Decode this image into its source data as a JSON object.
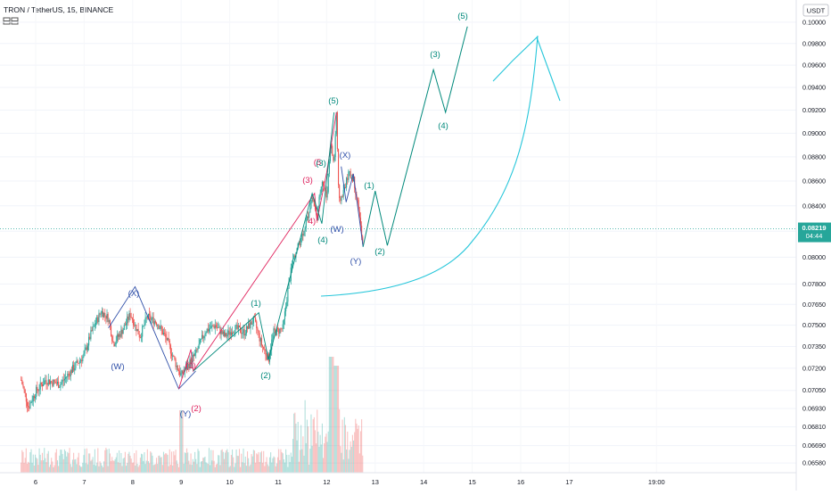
{
  "header": {
    "title": "TRON / TetherUS, 15, BINANCE",
    "indicator_icons": [
      "ruler-icon",
      "eye-icon"
    ]
  },
  "price_axis": {
    "currency": "USDT",
    "ticks": [
      "0.06580",
      "0.06690",
      "0.06810",
      "0.06930",
      "0.07050",
      "0.07200",
      "0.07350",
      "0.07500",
      "0.07650",
      "0.07800",
      "0.08000",
      "0.08200",
      "0.08400",
      "0.08600",
      "0.08800",
      "0.09000",
      "0.09200",
      "0.09400",
      "0.09600",
      "0.09800",
      "0.10000"
    ],
    "current_price": "0.08219",
    "countdown": "04:44"
  },
  "time_axis": {
    "labels": [
      "6",
      "7",
      "8",
      "9",
      "10",
      "11",
      "12",
      "13",
      "14",
      "15",
      "16",
      "17",
      "19:00"
    ]
  },
  "colors": {
    "up": "#26a69a",
    "down": "#ef5350",
    "teal": "#00897b",
    "blue": "#2f4fa8",
    "red": "#e0245e",
    "projection": "#26c6da",
    "price_line": "#26a69a"
  },
  "labels": {
    "blue_x1": "(X)",
    "blue_w1": "(W)",
    "blue_y1": "(Y)",
    "blue_x2": "(X)",
    "blue_w2": "(W)",
    "blue_y2": "(Y)",
    "red_1": "(1)",
    "red_2": "(2)",
    "red_3": "(3)",
    "red_4": "4)",
    "red_5": "(5",
    "green_1a": "(1)",
    "green_2a": "(2)",
    "green_3a": "(3)",
    "green_4a": "(4)",
    "green_5a": "(5)",
    "green_1b": "(1)",
    "green_2b": "(2)",
    "green_3b": "(3)",
    "green_4b": "(4)",
    "green_5b": "(5)"
  },
  "chart_data": {
    "type": "candlestick",
    "symbol": "TRON / TetherUS",
    "interval": "15",
    "exchange": "BINANCE",
    "y_range": [
      0.0652,
      0.1011
    ],
    "price_path": [
      [
        5.7,
        0.0712
      ],
      [
        5.85,
        0.0694
      ],
      [
        6.0,
        0.0704
      ],
      [
        6.2,
        0.0712
      ],
      [
        6.5,
        0.0709
      ],
      [
        6.8,
        0.0721
      ],
      [
        7.0,
        0.0729
      ],
      [
        7.15,
        0.0745
      ],
      [
        7.35,
        0.076
      ],
      [
        7.5,
        0.0755
      ],
      [
        7.6,
        0.0737
      ],
      [
        7.8,
        0.0747
      ],
      [
        7.95,
        0.0758
      ],
      [
        8.15,
        0.0742
      ],
      [
        8.3,
        0.0756
      ],
      [
        8.5,
        0.0752
      ],
      [
        8.7,
        0.074
      ],
      [
        8.9,
        0.0722
      ],
      [
        9.0,
        0.0715
      ],
      [
        9.1,
        0.072
      ],
      [
        9.3,
        0.073
      ],
      [
        9.5,
        0.0746
      ],
      [
        9.7,
        0.075
      ],
      [
        9.9,
        0.0742
      ],
      [
        10.1,
        0.0748
      ],
      [
        10.3,
        0.0745
      ],
      [
        10.5,
        0.0754
      ],
      [
        10.65,
        0.0737
      ],
      [
        10.8,
        0.0726
      ],
      [
        10.9,
        0.0745
      ],
      [
        11.0,
        0.0746
      ],
      [
        11.1,
        0.0748
      ],
      [
        11.2,
        0.0775
      ],
      [
        11.3,
        0.0798
      ],
      [
        11.45,
        0.0812
      ],
      [
        11.6,
        0.083
      ],
      [
        11.7,
        0.0847
      ],
      [
        11.8,
        0.083
      ],
      [
        11.9,
        0.0862
      ],
      [
        12.0,
        0.0846
      ],
      [
        12.08,
        0.0892
      ],
      [
        12.15,
        0.0873
      ],
      [
        12.2,
        0.0918
      ],
      [
        12.25,
        0.0842
      ],
      [
        12.35,
        0.0852
      ],
      [
        12.45,
        0.0866
      ],
      [
        12.55,
        0.0862
      ],
      [
        12.65,
        0.084
      ],
      [
        12.75,
        0.0806
      ]
    ],
    "volume_max_relative": 1.0,
    "wave_paths": {
      "blue_wxy_1": [
        [
          7.5,
          0.0748
        ],
        [
          8.05,
          0.0778
        ],
        [
          8.95,
          0.0706
        ],
        [
          9.3,
          0.0718
        ]
      ],
      "red_impulse": [
        [
          8.95,
          0.0706
        ],
        [
          9.2,
          0.0733
        ],
        [
          9.25,
          0.0718
        ],
        [
          11.75,
          0.085
        ],
        [
          11.8,
          0.0828
        ],
        [
          12.0,
          0.0867
        ],
        [
          12.2,
          0.0918
        ]
      ],
      "green_impulse_1": [
        [
          9.25,
          0.0718
        ],
        [
          10.6,
          0.0759
        ],
        [
          10.8,
          0.0726
        ],
        [
          11.7,
          0.085
        ],
        [
          11.9,
          0.0826
        ],
        [
          12.15,
          0.0918
        ]
      ],
      "blue_wxy_2": [
        [
          12.3,
          0.0872
        ],
        [
          12.4,
          0.0843
        ],
        [
          12.55,
          0.0866
        ],
        [
          12.75,
          0.0808
        ]
      ],
      "green_projection": [
        [
          12.75,
          0.0808
        ],
        [
          13.0,
          0.0852
        ],
        [
          13.25,
          0.0809
        ],
        [
          14.2,
          0.0956
        ],
        [
          14.45,
          0.0918
        ],
        [
          14.9,
          0.0996
        ]
      ]
    }
  }
}
